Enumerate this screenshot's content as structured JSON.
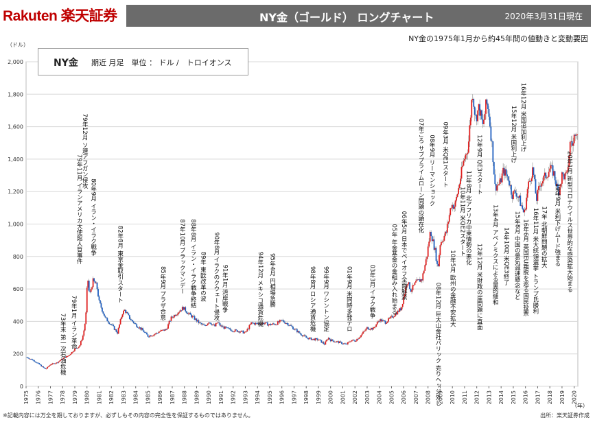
{
  "header": {
    "brand": "Rakuten 楽天証券",
    "title": "NY金（ゴールド） ロングチャート",
    "date": "2020年3月31日現在",
    "subtitle": "NY金の1975年1月から約45年間の値動きと変動要因"
  },
  "infobox": {
    "name": "NY金",
    "detail": "期近 月足　単位 ： ドル /　トロイオンス"
  },
  "footer": {
    "note": "※記載内容には万全を期しておりますが、必ずしもその内容の完全性を保証するものではありません。",
    "source": "出所：楽天証券作成"
  },
  "colors": {
    "up": "#e02020",
    "down": "#1f5fc0",
    "wick": "#888888",
    "grid": "#d8d8d8"
  },
  "chart_data": {
    "type": "line",
    "title": "NY金（ゴールド） ロングチャート",
    "ylabel": "（ドル）",
    "xlabel": "（年）",
    "ylim": [
      0,
      2000
    ],
    "xlim": [
      1975,
      2020.3
    ],
    "yticks": [
      0,
      200,
      400,
      600,
      800,
      1000,
      1200,
      1400,
      1600,
      1800,
      2000
    ],
    "ytick_labels": [
      "0",
      "200",
      "400",
      "600",
      "800",
      "1,000",
      "1,200",
      "1,400",
      "1,600",
      "1,800",
      "2,000"
    ],
    "xticks": [
      "1975",
      "1976",
      "1977",
      "1978",
      "1979",
      "1980",
      "1981",
      "1982",
      "1983",
      "1984",
      "1985",
      "1986",
      "1987",
      "1988",
      "1989",
      "1990",
      "1991",
      "1992",
      "1993",
      "1994",
      "1995",
      "1996",
      "1997",
      "1998",
      "1999",
      "2000",
      "2001",
      "2002",
      "2003",
      "2004",
      "2005",
      "2006",
      "2007",
      "2008",
      "2009",
      "2010",
      "2011",
      "2012",
      "2013",
      "2014",
      "2015",
      "2016",
      "2017",
      "2018",
      "2019",
      "2020"
    ],
    "grid": true,
    "series": [
      {
        "points": [
          [
            1975.0,
            180
          ],
          [
            1975.5,
            165
          ],
          [
            1976.0,
            140
          ],
          [
            1976.6,
            105
          ],
          [
            1977.0,
            135
          ],
          [
            1977.5,
            145
          ],
          [
            1978.0,
            170
          ],
          [
            1978.5,
            190
          ],
          [
            1979.0,
            230
          ],
          [
            1979.4,
            250
          ],
          [
            1979.7,
            320
          ],
          [
            1979.9,
            420
          ],
          [
            1980.05,
            680
          ],
          [
            1980.2,
            560
          ],
          [
            1980.5,
            650
          ],
          [
            1980.8,
            620
          ],
          [
            1981.0,
            520
          ],
          [
            1981.5,
            420
          ],
          [
            1982.0,
            380
          ],
          [
            1982.5,
            330
          ],
          [
            1982.9,
            450
          ],
          [
            1983.1,
            470
          ],
          [
            1983.5,
            420
          ],
          [
            1984.0,
            380
          ],
          [
            1984.5,
            350
          ],
          [
            1985.0,
            310
          ],
          [
            1985.5,
            320
          ],
          [
            1986.0,
            340
          ],
          [
            1986.5,
            350
          ],
          [
            1986.9,
            420
          ],
          [
            1987.5,
            460
          ],
          [
            1987.9,
            485
          ],
          [
            1988.3,
            450
          ],
          [
            1988.8,
            420
          ],
          [
            1989.2,
            390
          ],
          [
            1989.7,
            370
          ],
          [
            1990.0,
            400
          ],
          [
            1990.5,
            370
          ],
          [
            1990.7,
            395
          ],
          [
            1991.0,
            370
          ],
          [
            1991.5,
            355
          ],
          [
            1992.0,
            345
          ],
          [
            1992.5,
            340
          ],
          [
            1993.0,
            330
          ],
          [
            1993.5,
            390
          ],
          [
            1994.0,
            385
          ],
          [
            1994.5,
            390
          ],
          [
            1995.0,
            380
          ],
          [
            1995.5,
            385
          ],
          [
            1996.0,
            405
          ],
          [
            1996.5,
            385
          ],
          [
            1997.0,
            355
          ],
          [
            1997.5,
            325
          ],
          [
            1998.0,
            300
          ],
          [
            1998.5,
            290
          ],
          [
            1999.0,
            288
          ],
          [
            1999.5,
            260
          ],
          [
            1999.8,
            300
          ],
          [
            2000.0,
            285
          ],
          [
            2000.5,
            275
          ],
          [
            2001.0,
            265
          ],
          [
            2001.3,
            258
          ],
          [
            2001.7,
            285
          ],
          [
            2002.0,
            280
          ],
          [
            2002.5,
            315
          ],
          [
            2003.0,
            360
          ],
          [
            2003.5,
            355
          ],
          [
            2004.0,
            410
          ],
          [
            2004.5,
            395
          ],
          [
            2005.0,
            425
          ],
          [
            2005.8,
            480
          ],
          [
            2006.3,
            650
          ],
          [
            2006.6,
            590
          ],
          [
            2007.0,
            640
          ],
          [
            2007.5,
            660
          ],
          [
            2007.9,
            800
          ],
          [
            2008.2,
            960
          ],
          [
            2008.6,
            830
          ],
          [
            2008.8,
            720
          ],
          [
            2009.0,
            880
          ],
          [
            2009.5,
            950
          ],
          [
            2009.9,
            1120
          ],
          [
            2010.2,
            1110
          ],
          [
            2010.5,
            1220
          ],
          [
            2010.9,
            1380
          ],
          [
            2011.3,
            1480
          ],
          [
            2011.65,
            1820
          ],
          [
            2011.9,
            1650
          ],
          [
            2012.2,
            1720
          ],
          [
            2012.5,
            1600
          ],
          [
            2012.8,
            1750
          ],
          [
            2013.0,
            1680
          ],
          [
            2013.3,
            1450
          ],
          [
            2013.5,
            1230
          ],
          [
            2013.9,
            1250
          ],
          [
            2014.2,
            1330
          ],
          [
            2014.6,
            1280
          ],
          [
            2014.9,
            1180
          ],
          [
            2015.2,
            1200
          ],
          [
            2015.5,
            1150
          ],
          [
            2015.9,
            1060
          ],
          [
            2016.2,
            1230
          ],
          [
            2016.6,
            1340
          ],
          [
            2016.9,
            1150
          ],
          [
            2017.2,
            1250
          ],
          [
            2017.6,
            1290
          ],
          [
            2018.0,
            1340
          ],
          [
            2018.3,
            1320
          ],
          [
            2018.7,
            1190
          ],
          [
            2019.0,
            1300
          ],
          [
            2019.4,
            1290
          ],
          [
            2019.7,
            1520
          ],
          [
            2019.9,
            1480
          ],
          [
            2020.1,
            1590
          ],
          [
            2020.3,
            1580
          ]
        ]
      }
    ],
    "annotations": [
      {
        "x": 1978.0,
        "y": 450,
        "text": "73年末 第一次石油危機"
      },
      {
        "x": 1978.9,
        "y": 560,
        "text": "79年1月 イラン革命"
      },
      {
        "x": 1979.35,
        "y": 1430,
        "text": "79年11月 イランアメリカ大使館人質事件"
      },
      {
        "x": 1979.8,
        "y": 1680,
        "text": "79年12月 ソ連アフガン侵攻"
      },
      {
        "x": 1980.5,
        "y": 1280,
        "text": "80年9月 イラン・イラク戦争"
      },
      {
        "x": 1982.7,
        "y": 990,
        "text": "82年8月 東京金取引スタート"
      },
      {
        "x": 1986.2,
        "y": 740,
        "text": "85年9月 プラザ合意"
      },
      {
        "x": 1987.8,
        "y": 1030,
        "text": "87年10月 ブラックマンデー"
      },
      {
        "x": 1988.7,
        "y": 1030,
        "text": "88年8月 イラン・イラク戦争終結"
      },
      {
        "x": 1989.5,
        "y": 830,
        "text": "89年 東欧改革の波"
      },
      {
        "x": 1990.6,
        "y": 950,
        "text": "90年8月 イラクのクウェート侵攻"
      },
      {
        "x": 1991.3,
        "y": 750,
        "text": "91年1月 湾岸戦争"
      },
      {
        "x": 1994.2,
        "y": 830,
        "text": "94年12月 メキシコ通貨危機"
      },
      {
        "x": 1995.2,
        "y": 820,
        "text": "95年4月 円相場急騰"
      },
      {
        "x": 1998.5,
        "y": 740,
        "text": "98年8月 ロシア通貨危機"
      },
      {
        "x": 1999.6,
        "y": 740,
        "text": "99年9月 ワシントン協定"
      },
      {
        "x": 2001.5,
        "y": 740,
        "text": "01年9月 米同時多発テロ"
      },
      {
        "x": 2003.4,
        "y": 750,
        "text": "03年3月 イラク戦争"
      },
      {
        "x": 2005.2,
        "y": 1000,
        "text": "05年 年金基金の金組み入れ始まる"
      },
      {
        "x": 2006.0,
        "y": 1080,
        "text": "06年5月 日本でペイオフ全面解禁"
      },
      {
        "x": 2007.4,
        "y": 1650,
        "text": "07年ごろ サブプライムローン問題の顕在化"
      },
      {
        "x": 2008.3,
        "y": 1550,
        "text": "08年9月 リーマンショック"
      },
      {
        "x": 2008.8,
        "y": 640,
        "text": "08年12月 巨大山金社バリック 売りヘッジ外し"
      },
      {
        "x": 2009.4,
        "y": 1630,
        "text": "09年3月 米QE1スタート"
      },
      {
        "x": 2010.0,
        "y": 840,
        "text": "10年5月 欧州の金融不安拡大"
      },
      {
        "x": 2010.8,
        "y": 1230,
        "text": "10年11月 米QE2スタート"
      },
      {
        "x": 2011.3,
        "y": 1330,
        "text": "11年8月 北アフリカ中東情勢の悪化"
      },
      {
        "x": 2012.2,
        "y": 1550,
        "text": "12年9月 QE3スタート"
      },
      {
        "x": 2012.2,
        "y": 880,
        "text": "12年12月 米財政の崖問題に直面"
      },
      {
        "x": 2013.5,
        "y": 1120,
        "text": "13年4月 アベノミクスによる量的緩和"
      },
      {
        "x": 2014.4,
        "y": 980,
        "text": "14年10月 米QE3終了"
      },
      {
        "x": 2015.0,
        "y": 1730,
        "text": "15年12月 米国利上げ"
      },
      {
        "x": 2015.3,
        "y": 1080,
        "text": "15年8月 中国の景気減速懸念など"
      },
      {
        "x": 2015.8,
        "y": 1870,
        "text": "16年12月 米国追加利上げ"
      },
      {
        "x": 2016.0,
        "y": 1030,
        "text": "16年6月 英国EU離脱を巡る国民投票"
      },
      {
        "x": 2016.8,
        "y": 1100,
        "text": "16年11月 米大統領選挙 トランプ氏勝利"
      },
      {
        "x": 2017.5,
        "y": 1110,
        "text": "17年 北朝鮮問題の拡大"
      },
      {
        "x": 2018.6,
        "y": 1250,
        "text": "19年9月 米利下げムード強まる"
      },
      {
        "x": 2019.6,
        "y": 1450,
        "text": "20年1月 新型コロナウイルス世界的な感染拡大始まる"
      }
    ]
  }
}
